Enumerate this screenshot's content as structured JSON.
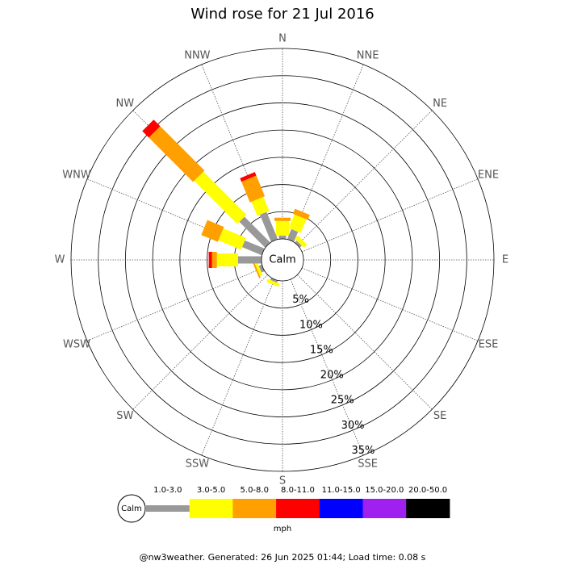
{
  "chart_data": {
    "type": "wind_rose",
    "title": "Wind rose for 21 Jul 2016",
    "categories": [
      "N",
      "NNE",
      "NE",
      "ENE",
      "E",
      "ESE",
      "SE",
      "SSE",
      "S",
      "SSW",
      "SW",
      "WSW",
      "W",
      "WNW",
      "NW",
      "NNW"
    ],
    "center_label": "Calm",
    "rlim": [
      0,
      35
    ],
    "rticks": [
      {
        "value": 5,
        "label": "5%"
      },
      {
        "value": 10,
        "label": "10%"
      },
      {
        "value": 15,
        "label": "15%"
      },
      {
        "value": 20,
        "label": "20%"
      },
      {
        "value": 25,
        "label": "25%"
      },
      {
        "value": 30,
        "label": "30%"
      },
      {
        "value": 35,
        "label": "35%"
      }
    ],
    "series": [
      {
        "name": "1.0-3.0",
        "color": "#999999",
        "values": [
          0.6,
          2.0,
          0.5,
          0,
          0,
          0,
          0,
          0,
          0,
          0.4,
          0,
          0.6,
          4.3,
          3.9,
          6.7,
          5.4
        ]
      },
      {
        "name": "3.0-5.0",
        "color": "#ffff00",
        "values": [
          2.7,
          2.7,
          0.8,
          0,
          0,
          0,
          0,
          0,
          0,
          0.6,
          0,
          0.5,
          3.9,
          4.5,
          11.2,
          2.8
        ]
      },
      {
        "name": "5.0-8.0",
        "color": "#ffa000",
        "values": [
          0.6,
          1.0,
          0,
          0,
          0,
          0,
          0,
          0,
          0,
          0,
          0,
          0.3,
          0.9,
          3.3,
          11.5,
          4.1
        ]
      },
      {
        "name": "8.0-11.0",
        "color": "#ff0000",
        "values": [
          0,
          0,
          0,
          0,
          0,
          0,
          0,
          0,
          0,
          0,
          0,
          0,
          0.6,
          0,
          1.7,
          0.7
        ]
      },
      {
        "name": "11.0-15.0",
        "color": "#0000ff",
        "values": [
          0,
          0,
          0,
          0,
          0,
          0,
          0,
          0,
          0,
          0,
          0,
          0,
          0,
          0,
          0,
          0
        ]
      },
      {
        "name": "15.0-20.0",
        "color": "#a020f0",
        "values": [
          0,
          0,
          0,
          0,
          0,
          0,
          0,
          0,
          0,
          0,
          0,
          0,
          0,
          0,
          0,
          0
        ]
      },
      {
        "name": "20.0-50.0",
        "color": "#000000",
        "values": [
          0,
          0,
          0,
          0,
          0,
          0,
          0,
          0,
          0,
          0,
          0,
          0,
          0,
          0,
          0,
          0
        ]
      }
    ],
    "legend_unit": "mph",
    "footer": "@nw3weather. Generated: 26 Jun 2025 01:44; Load time: 0.08 s"
  }
}
